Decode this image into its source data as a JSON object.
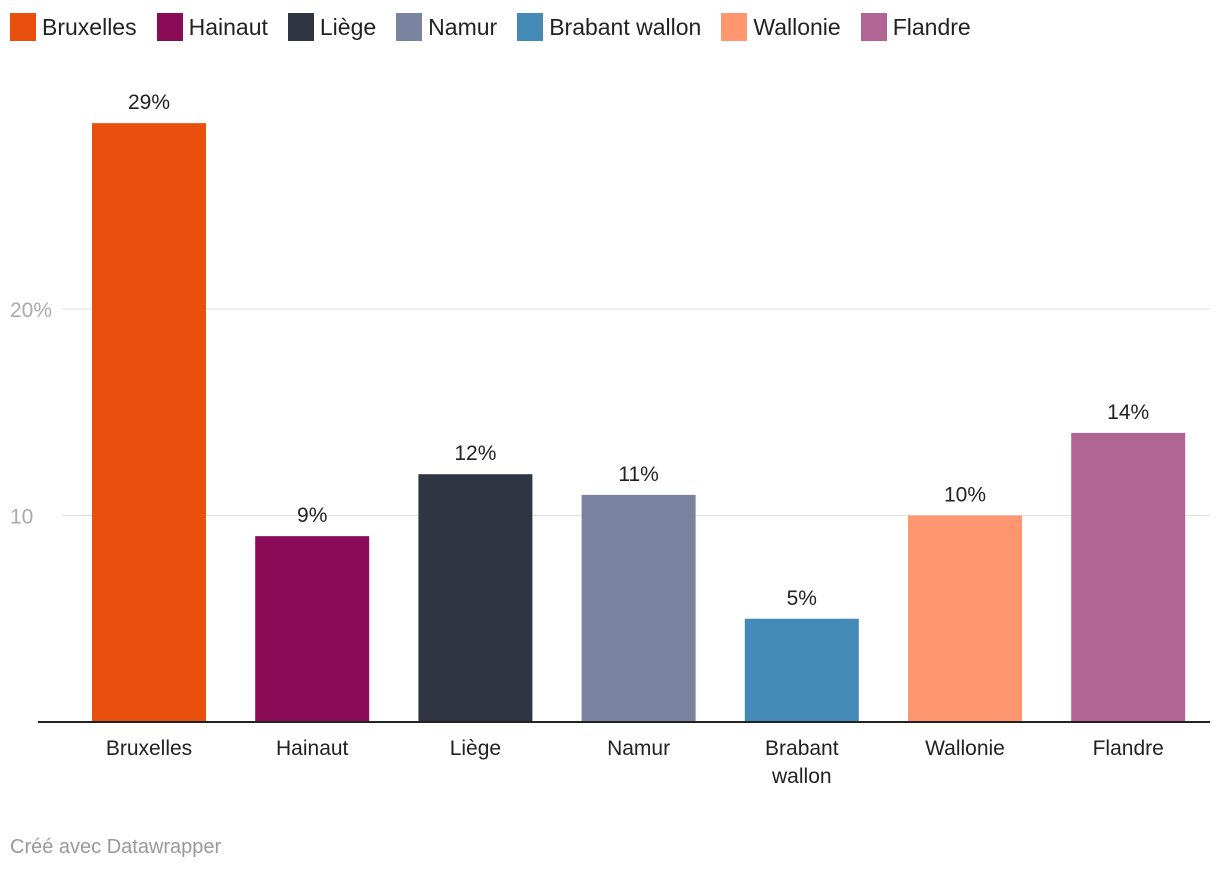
{
  "chart_data": {
    "type": "bar",
    "categories": [
      "Bruxelles",
      "Hainaut",
      "Liège",
      "Namur",
      "Brabant wallon",
      "Wallonie",
      "Flandre"
    ],
    "category_lines": [
      [
        "Bruxelles"
      ],
      [
        "Hainaut"
      ],
      [
        "Liège"
      ],
      [
        "Namur"
      ],
      [
        "Brabant",
        "wallon"
      ],
      [
        "Wallonie"
      ],
      [
        "Flandre"
      ]
    ],
    "values": [
      29,
      9,
      12,
      11,
      5,
      10,
      14
    ],
    "value_labels": [
      "29%",
      "9%",
      "12%",
      "11%",
      "5%",
      "10%",
      "14%"
    ],
    "colors": [
      "#e9500e",
      "#8b0b56",
      "#303641",
      "#7a84a0",
      "#438bb6",
      "#ff9670",
      "#b06595"
    ],
    "yticks": [
      10,
      20
    ],
    "ytick_labels": [
      "10",
      "20%"
    ],
    "ylim": [
      0,
      30
    ],
    "grid": true,
    "legend": "top-left",
    "title": "",
    "xlabel": "",
    "ylabel": ""
  },
  "footer": "Créé avec Datawrapper"
}
